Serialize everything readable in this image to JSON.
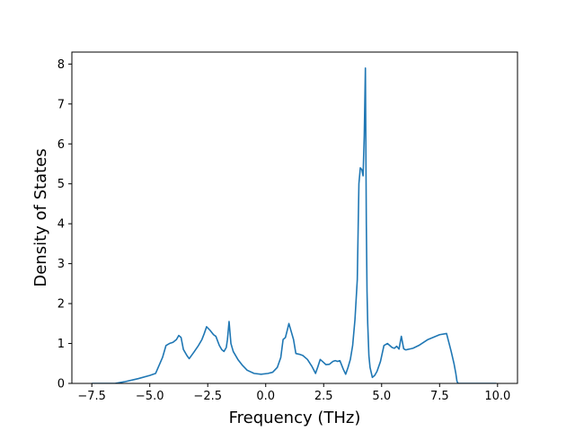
{
  "chart_data": {
    "type": "line",
    "title": "",
    "xlabel": "Frequency (THz)",
    "ylabel": "Density of States",
    "xlim": [
      -8.36,
      10.86
    ],
    "ylim": [
      0,
      8.3
    ],
    "xticks": [
      -7.5,
      -5.0,
      -2.5,
      0.0,
      2.5,
      5.0,
      7.5,
      10.0
    ],
    "xtick_labels": [
      "−7.5",
      "−5.0",
      "−2.5",
      "0.0",
      "2.5",
      "5.0",
      "7.5",
      "10.0"
    ],
    "yticks": [
      0,
      1,
      2,
      3,
      4,
      5,
      6,
      7,
      8
    ],
    "ytick_labels": [
      "0",
      "1",
      "2",
      "3",
      "4",
      "5",
      "6",
      "7",
      "8"
    ],
    "grid": false,
    "legend": "none",
    "series": [
      {
        "color": "#1f77b4",
        "x": [
          -7.5,
          -6.5,
          -6.1,
          -5.5,
          -5.0,
          -4.75,
          -4.45,
          -4.3,
          -4.15,
          -4.0,
          -3.85,
          -3.75,
          -3.65,
          -3.55,
          -3.4,
          -3.3,
          -3.1,
          -2.9,
          -2.75,
          -2.65,
          -2.55,
          -2.4,
          -2.25,
          -2.15,
          -2.0,
          -1.9,
          -1.8,
          -1.7,
          -1.65,
          -1.58,
          -1.5,
          -1.4,
          -1.2,
          -1.0,
          -0.8,
          -0.5,
          -0.2,
          0.1,
          0.3,
          0.5,
          0.65,
          0.75,
          0.85,
          0.95,
          1.0,
          1.1,
          1.2,
          1.3,
          1.45,
          1.6,
          1.8,
          2.0,
          2.15,
          2.25,
          2.35,
          2.45,
          2.6,
          2.75,
          2.9,
          3.0,
          3.1,
          3.2,
          3.35,
          3.45,
          3.55,
          3.65,
          3.75,
          3.85,
          3.95,
          4.02,
          4.08,
          4.15,
          4.2,
          4.25,
          4.3,
          4.34,
          4.37,
          4.4,
          4.45,
          4.5,
          4.6,
          4.7,
          4.8,
          4.95,
          5.1,
          5.25,
          5.35,
          5.45,
          5.55,
          5.65,
          5.75,
          5.85,
          5.95,
          6.0,
          6.05,
          6.12,
          6.2,
          6.35,
          6.6,
          7.0,
          7.5,
          7.8,
          8.0,
          8.12,
          8.2,
          8.25,
          8.3,
          8.45,
          8.65,
          9.3,
          9.95
        ],
        "y": [
          0.0,
          0.0,
          0.04,
          0.12,
          0.2,
          0.25,
          0.65,
          0.95,
          1.0,
          1.03,
          1.1,
          1.2,
          1.15,
          0.85,
          0.7,
          0.62,
          0.78,
          0.95,
          1.1,
          1.25,
          1.42,
          1.33,
          1.22,
          1.18,
          0.95,
          0.85,
          0.8,
          0.9,
          1.1,
          1.55,
          1.0,
          0.8,
          0.6,
          0.45,
          0.33,
          0.25,
          0.23,
          0.25,
          0.28,
          0.4,
          0.65,
          1.1,
          1.15,
          1.38,
          1.5,
          1.3,
          1.1,
          0.75,
          0.73,
          0.7,
          0.6,
          0.42,
          0.25,
          0.42,
          0.6,
          0.55,
          0.47,
          0.48,
          0.55,
          0.57,
          0.55,
          0.57,
          0.35,
          0.23,
          0.4,
          0.6,
          0.95,
          1.6,
          2.6,
          5.0,
          5.4,
          5.35,
          5.2,
          6.2,
          7.9,
          4.0,
          2.3,
          1.5,
          0.7,
          0.4,
          0.15,
          0.2,
          0.3,
          0.55,
          0.95,
          1.0,
          0.95,
          0.9,
          0.88,
          0.93,
          0.86,
          1.18,
          0.87,
          0.85,
          0.84,
          0.85,
          0.86,
          0.88,
          0.95,
          1.1,
          1.22,
          1.25,
          0.8,
          0.5,
          0.25,
          0.05,
          0.0,
          0.0,
          0.0,
          0.0,
          0.0
        ]
      }
    ]
  }
}
